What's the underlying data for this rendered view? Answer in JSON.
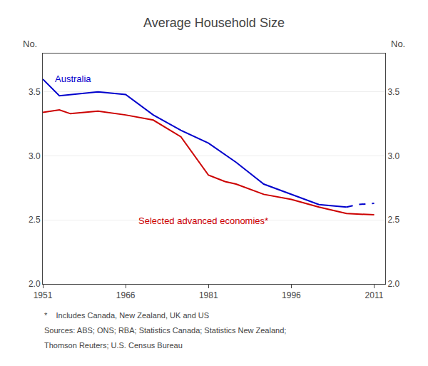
{
  "chart_data": {
    "type": "line",
    "title": "Average Household Size",
    "ylabel": "No.",
    "y2label": "No.",
    "xlim": [
      1951,
      2013
    ],
    "xticks": [
      1951,
      1966,
      1981,
      1996,
      2011
    ],
    "ylim": [
      2.0,
      3.8
    ],
    "yticks": [
      {
        "value": 2.0,
        "label": "2.0"
      },
      {
        "value": 2.5,
        "label": "2.5"
      },
      {
        "value": 3.0,
        "label": "3.0"
      },
      {
        "value": 3.5,
        "label": "3.5"
      }
    ],
    "y2lim": [
      2.0,
      3.8
    ],
    "y2ticks": [
      {
        "value": 2.0,
        "label": "2.0"
      },
      {
        "value": 2.5,
        "label": "2.5"
      },
      {
        "value": 3.0,
        "label": "3.0"
      },
      {
        "value": 3.5,
        "label": "3.5"
      }
    ],
    "grid": true,
    "series": [
      {
        "name": "Australia",
        "color": "#0000CC",
        "line_style": "solid",
        "x": [
          1951,
          1954,
          1961,
          1966,
          1971,
          1976,
          1981,
          1986,
          1991,
          1996,
          2001,
          2006
        ],
        "values": [
          3.6,
          3.47,
          3.5,
          3.48,
          3.32,
          3.2,
          3.1,
          2.95,
          2.78,
          2.7,
          2.62,
          2.6
        ]
      },
      {
        "name": "Australia",
        "color": "#0000CC",
        "line_style": "dashed",
        "x": [
          2006,
          2008,
          2011
        ],
        "values": [
          2.6,
          2.62,
          2.63
        ]
      },
      {
        "name": "Selected advanced economies*",
        "color": "#CC0000",
        "line_style": "solid",
        "x": [
          1951,
          1954,
          1956,
          1961,
          1966,
          1971,
          1976,
          1981,
          1984,
          1986,
          1991,
          1996,
          2001,
          2006,
          2011
        ],
        "values": [
          3.34,
          3.36,
          3.33,
          3.35,
          3.32,
          3.28,
          3.15,
          2.85,
          2.8,
          2.78,
          2.7,
          2.66,
          2.6,
          2.55,
          2.54
        ]
      }
    ],
    "annotations": [
      {
        "text": "Australia",
        "x": 1953,
        "y": 3.55
      },
      {
        "text": "Selected advanced economies*",
        "x": 1968,
        "y": 2.44
      }
    ],
    "footnotes": [
      "*    Includes Canada, New Zealand, UK and US",
      "Sources: ABS; ONS; RBA; Statistics Canada; Statistics New Zealand;",
      "Thomson Reuters; U.S. Census Bureau"
    ]
  }
}
